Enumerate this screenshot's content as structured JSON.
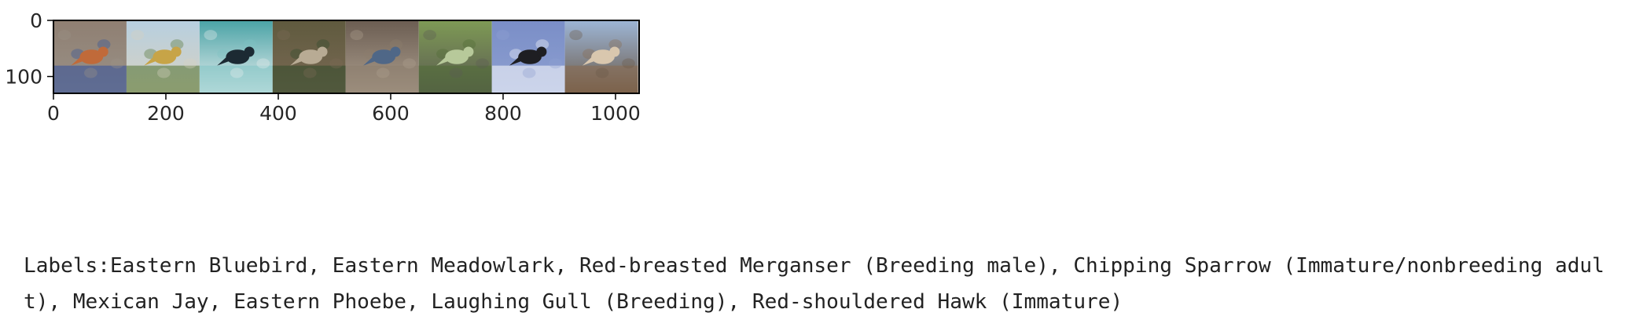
{
  "chart_data": {
    "type": "image_grid",
    "title": "",
    "xlabel": "",
    "ylabel": "",
    "xlim": [
      0,
      1042
    ],
    "ylim": [
      130,
      0
    ],
    "x_ticks": [
      0,
      200,
      400,
      600,
      800,
      1000
    ],
    "x_tick_labels": [
      "0",
      "200",
      "400",
      "600",
      "800",
      "1000"
    ],
    "y_ticks": [
      0,
      100
    ],
    "y_tick_labels": [
      "0",
      "100"
    ],
    "tile_size": 128,
    "tile_gap": 2,
    "tiles": [
      {
        "name": "Eastern Bluebird",
        "palette": [
          "#8f7f72",
          "#2f4f9c",
          "#c06a3a",
          "#9a9288"
        ]
      },
      {
        "name": "Eastern Meadowlark",
        "palette": [
          "#b7cfe0",
          "#4d6f2c",
          "#c7a447",
          "#d8d2c0"
        ]
      },
      {
        "name": "Red-breasted Merganser (Breeding male)",
        "palette": [
          "#4aa3a6",
          "#7fc4c4",
          "#1c2a33",
          "#e9efef"
        ]
      },
      {
        "name": "Chipping Sparrow (Immature/nonbreeding adult)",
        "palette": [
          "#5f5a3e",
          "#2f4a2a",
          "#b8ab94",
          "#7b6a55"
        ]
      },
      {
        "name": "Mexican Jay",
        "palette": [
          "#6b5d52",
          "#8c7e6e",
          "#4f6787",
          "#aea08f"
        ]
      },
      {
        "name": "Eastern Phoebe",
        "palette": [
          "#7e9a55",
          "#4e6b35",
          "#b7c99a",
          "#5b5b52"
        ]
      },
      {
        "name": "Laughing Gull (Breeding)",
        "palette": [
          "#7a8ec7",
          "#ffffff",
          "#1e1e22",
          "#8ea0d1"
        ]
      },
      {
        "name": "Red-shouldered Hawk (Immature)",
        "palette": [
          "#9db5d6",
          "#8a6a4e",
          "#d9c7ae",
          "#6b5a47"
        ]
      }
    ]
  },
  "output": {
    "labels_text": "Labels:Eastern Bluebird, Eastern Meadowlark, Red-breasted Merganser (Breeding male), Chipping Sparrow (Immature/nonbreeding adult), Mexican Jay, Eastern Phoebe, Laughing Gull (Breeding), Red-shouldered Hawk (Immature)"
  }
}
